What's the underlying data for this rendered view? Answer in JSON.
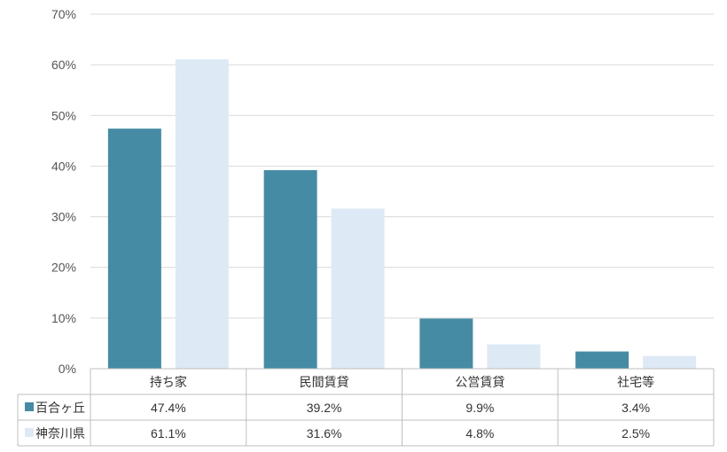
{
  "chart_data": {
    "type": "bar",
    "categories": [
      "持ち家",
      "民間賃貸",
      "公営賃貸",
      "社宅等"
    ],
    "series": [
      {
        "name": "百合ヶ丘",
        "values": [
          47.4,
          39.2,
          9.9,
          3.4
        ],
        "labels": [
          "47.4%",
          "39.2%",
          "9.9%",
          "3.4%"
        ],
        "color": "#468ba4"
      },
      {
        "name": "神奈川県",
        "values": [
          61.1,
          31.6,
          4.8,
          2.5
        ],
        "labels": [
          "61.1%",
          "31.6%",
          "4.8%",
          "2.5%"
        ],
        "color": "#dde9f5"
      }
    ],
    "y_ticks": [
      "0%",
      "10%",
      "20%",
      "30%",
      "40%",
      "50%",
      "60%",
      "70%"
    ],
    "ylim": [
      0,
      70
    ],
    "grid": true,
    "legend": "data-table"
  }
}
